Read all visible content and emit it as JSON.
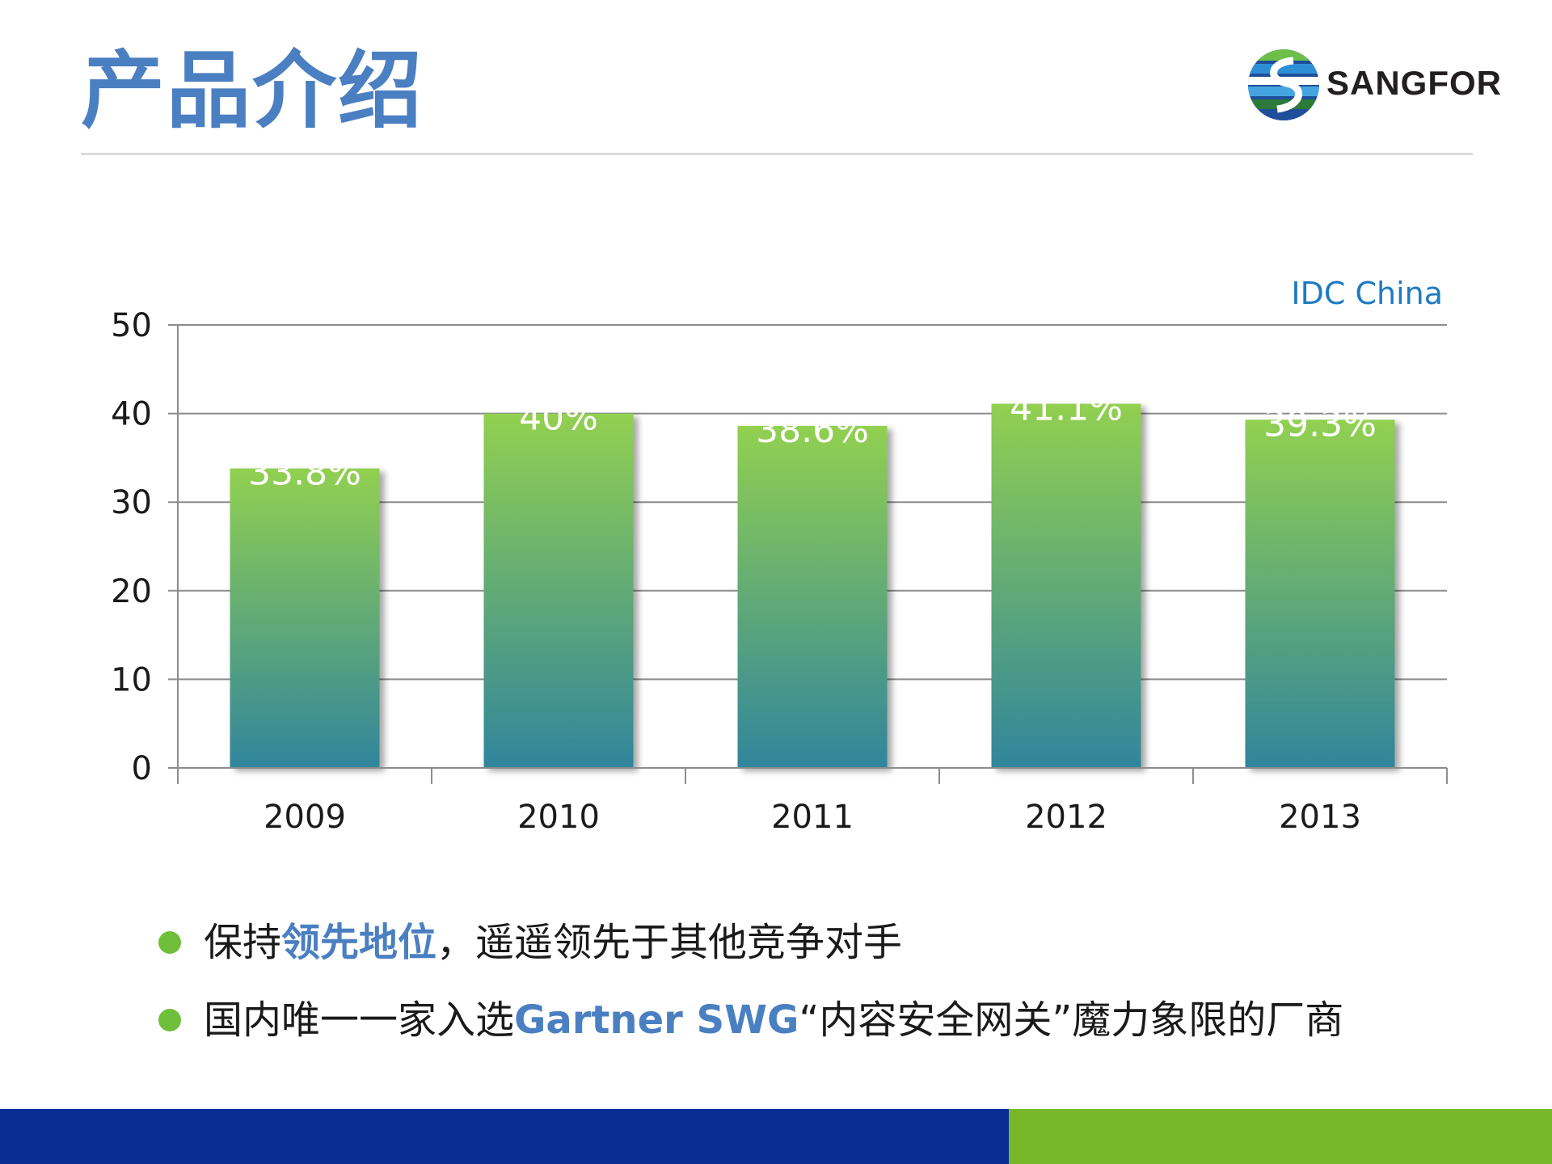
{
  "slide": {
    "title": "产品介绍",
    "logo_text": "SANGFOR"
  },
  "chart_data": {
    "type": "bar",
    "source_note": "IDC China",
    "categories": [
      "2009",
      "2010",
      "2011",
      "2012",
      "2013"
    ],
    "values": [
      33.8,
      40,
      38.6,
      41.1,
      39.3
    ],
    "data_labels": [
      "33.8%",
      "40%",
      "38.6%",
      "41.1%",
      "39.3%"
    ],
    "yticks": [
      "0",
      "10",
      "20",
      "30",
      "40",
      "50"
    ],
    "ylim": [
      0,
      50
    ],
    "grid": true,
    "legend": "none",
    "colors": {
      "bar_top": "#92d050",
      "bar_bottom": "#31859c",
      "grid": "#8c8c8c"
    }
  },
  "bullets": [
    {
      "pre": "保持",
      "highlight": "领先地位",
      "post": "，遥遥领先于其他竞争对手"
    },
    {
      "pre": "国内唯一一家入选",
      "highlight": "Gartner SWG",
      "post": "“内容安全网关”魔力象限的厂商"
    }
  ],
  "colors": {
    "title": "#4a7fc1",
    "bullet_dot": "#6fbf3a",
    "footer_left": "#0a2d94",
    "footer_right": "#76b82a"
  }
}
